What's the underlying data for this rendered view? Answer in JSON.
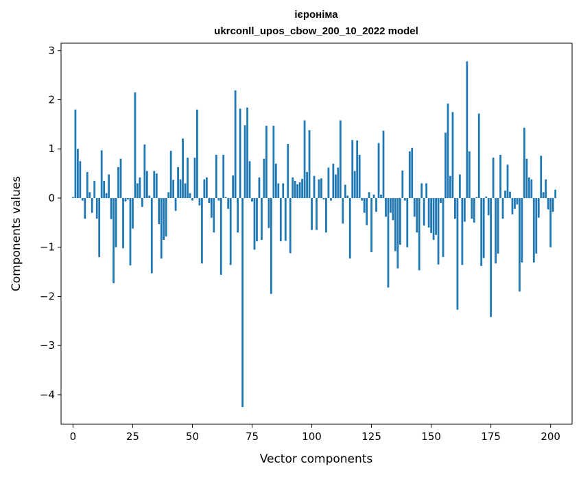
{
  "chart_data": {
    "type": "bar",
    "title": "ієроніма",
    "subtitle": "ukrconll_upos_cbow_200_10_2022 model",
    "xlabel": "Vector components",
    "ylabel": "Components values",
    "xlim": [
      -5,
      209
    ],
    "ylim": [
      -4.6,
      3.15
    ],
    "xticks": [
      0,
      25,
      50,
      75,
      100,
      125,
      150,
      175,
      200
    ],
    "xtick_labels": [
      "0",
      "25",
      "50",
      "75",
      "100",
      "125",
      "150",
      "175",
      "200"
    ],
    "yticks": [
      -4,
      -3,
      -2,
      -1,
      0,
      1,
      2,
      3
    ],
    "ytick_labels": [
      "−4",
      "−3",
      "−2",
      "−1",
      "0",
      "1",
      "2",
      "3"
    ],
    "grid": false,
    "bar_color": "#1f77b4",
    "values": [
      0.02,
      1.8,
      1.0,
      0.75,
      -0.05,
      -0.42,
      0.53,
      0.12,
      -0.3,
      0.35,
      -0.42,
      -1.2,
      0.97,
      0.35,
      0.1,
      0.48,
      -0.43,
      -1.73,
      -1.0,
      0.63,
      0.8,
      -1.02,
      -0.07,
      -0.03,
      -1.37,
      -0.62,
      2.15,
      0.3,
      0.42,
      -0.18,
      1.09,
      0.55,
      0.05,
      -1.53,
      0.55,
      0.5,
      -0.53,
      -1.23,
      -0.85,
      -0.78,
      0.12,
      0.96,
      0.37,
      -0.26,
      0.63,
      0.38,
      1.21,
      0.3,
      0.82,
      0.1,
      -0.05,
      0.82,
      1.8,
      -0.15,
      -1.33,
      0.38,
      0.42,
      -0.1,
      -0.4,
      -0.7,
      0.88,
      -0.05,
      -1.56,
      0.88,
      0.02,
      -0.22,
      -1.36,
      0.46,
      2.19,
      -0.7,
      1.82,
      -4.25,
      1.48,
      1.84,
      0.75,
      -0.07,
      -1.05,
      -0.88,
      0.42,
      -0.85,
      0.8,
      1.47,
      -0.61,
      -1.95,
      1.47,
      0.7,
      0.3,
      -0.88,
      0.3,
      -0.87,
      1.1,
      -1.12,
      0.42,
      0.35,
      0.28,
      0.32,
      0.39,
      1.58,
      0.53,
      1.38,
      -0.65,
      0.45,
      -0.65,
      0.38,
      0.4,
      -0.03,
      -0.7,
      0.62,
      -0.05,
      0.7,
      0.48,
      0.62,
      1.58,
      -0.52,
      0.27,
      0.05,
      -1.23,
      1.18,
      0.55,
      1.17,
      0.88,
      -0.05,
      -0.3,
      -0.55,
      0.12,
      -1.1,
      0.07,
      -0.28,
      1.12,
      0.07,
      1.37,
      -0.38,
      -1.82,
      -0.3,
      -0.45,
      -1.08,
      -1.43,
      -0.95,
      0.56,
      -0.05,
      -1.0,
      0.95,
      1.02,
      -0.38,
      -0.7,
      -1.47,
      0.3,
      -0.56,
      0.3,
      -0.6,
      -0.71,
      -0.85,
      -0.75,
      -1.35,
      -0.1,
      -1.2,
      1.33,
      1.92,
      0.45,
      1.75,
      -0.42,
      -2.27,
      0.48,
      -1.36,
      -0.48,
      2.78,
      0.95,
      -0.42,
      -0.5,
      0.02,
      1.72,
      -1.38,
      -1.22,
      0.03,
      -0.35,
      -2.42,
      0.82,
      -1.33,
      -1.13,
      0.88,
      -0.42,
      0.15,
      0.68,
      0.13,
      -0.33,
      -0.22,
      -0.13,
      -1.9,
      -1.31,
      1.43,
      0.8,
      0.42,
      0.38,
      -1.31,
      -1.13,
      -0.4,
      0.86,
      0.12,
      0.38,
      -0.23,
      -1.0,
      -0.28,
      0.17
    ]
  }
}
